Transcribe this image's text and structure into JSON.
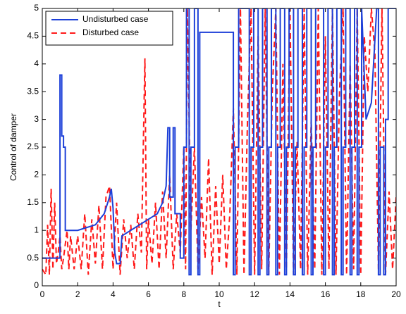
{
  "chart_data": {
    "type": "line",
    "xlabel": "t",
    "ylabel": "Control of damper",
    "xlim": [
      0,
      20
    ],
    "xticks": [
      0,
      2,
      4,
      6,
      8,
      10,
      12,
      14,
      16,
      18,
      20
    ],
    "ylim": [
      0,
      5
    ],
    "yticks": [
      0,
      0.5,
      1,
      1.5,
      2,
      2.5,
      3,
      3.5,
      4,
      4.5,
      5
    ],
    "grid": false,
    "legend": "upper left",
    "series": [
      {
        "name": "Undisturbed case",
        "color": "#1c3fd8",
        "dash": false,
        "x": [
          0,
          1.0,
          1.0,
          1.1,
          1.1,
          1.2,
          1.2,
          1.3,
          1.3,
          2.0,
          2.5,
          3.0,
          3.5,
          3.8,
          3.9,
          4.0,
          4.1,
          4.2,
          4.4,
          4.5,
          5.0,
          5.5,
          6.0,
          6.5,
          6.8,
          7.0,
          7.1,
          7.2,
          7.2,
          7.4,
          7.4,
          7.5,
          7.5,
          7.8,
          7.8,
          8.0,
          8.0,
          8.15,
          8.15,
          8.3,
          8.3,
          8.4,
          8.4,
          8.6,
          8.6,
          8.8,
          8.8,
          8.9,
          8.9,
          10.8,
          10.8,
          10.9,
          10.9,
          11.1,
          11.1,
          11.7,
          11.7,
          11.8,
          11.8,
          11.95,
          11.95,
          12.2,
          12.2,
          12.3,
          12.3,
          12.45,
          12.45,
          12.7,
          12.7,
          12.8,
          12.8,
          12.95,
          12.95,
          13.2,
          13.2,
          13.3,
          13.3,
          13.45,
          13.45,
          13.7,
          13.7,
          13.8,
          13.8,
          13.95,
          13.95,
          14.2,
          14.2,
          14.3,
          14.3,
          14.45,
          14.45,
          14.7,
          14.7,
          14.8,
          14.8,
          14.95,
          14.95,
          15.2,
          15.2,
          15.3,
          15.3,
          15.45,
          15.45,
          15.9,
          15.9,
          16.0,
          16.0,
          16.15,
          16.15,
          16.4,
          16.4,
          16.5,
          16.5,
          16.65,
          16.65,
          16.9,
          16.9,
          17.0,
          17.0,
          17.15,
          17.15,
          17.4,
          17.4,
          17.5,
          17.5,
          17.65,
          17.65,
          17.8,
          17.8,
          17.9,
          17.9,
          18.05,
          18.05,
          18.3,
          18.6,
          18.9,
          19.0,
          19.0,
          19.1,
          19.1,
          19.3,
          19.3,
          19.4,
          19.4,
          19.55,
          19.55,
          20
        ],
        "values": [
          0.5,
          0.5,
          3.8,
          3.8,
          2.7,
          2.7,
          2.5,
          2.5,
          1.0,
          1.0,
          1.05,
          1.1,
          1.3,
          1.6,
          1.75,
          1.4,
          0.6,
          0.4,
          0.4,
          0.9,
          1.0,
          1.1,
          1.2,
          1.3,
          1.5,
          1.8,
          2.85,
          2.85,
          1.6,
          1.6,
          2.85,
          2.85,
          1.3,
          1.3,
          0.5,
          0.5,
          2.5,
          2.5,
          5,
          5,
          0.2,
          0.2,
          2.5,
          2.5,
          5,
          5,
          0.2,
          0.2,
          4.57,
          4.57,
          0.2,
          0.2,
          2.5,
          2.5,
          5,
          5,
          0.2,
          0.2,
          2.5,
          2.5,
          5,
          5,
          0.2,
          0.2,
          2.5,
          2.5,
          5,
          5,
          0.2,
          0.2,
          2.5,
          2.5,
          5,
          5,
          0.2,
          0.2,
          2.5,
          2.5,
          5,
          5,
          0.2,
          0.2,
          2.5,
          2.5,
          5,
          5,
          0.2,
          0.2,
          2.5,
          2.5,
          5,
          5,
          0.2,
          0.2,
          2.5,
          2.5,
          5,
          5,
          0.2,
          0.2,
          2.5,
          2.5,
          5,
          5,
          0.2,
          0.2,
          2.5,
          2.5,
          5,
          5,
          0.2,
          0.2,
          2.5,
          2.5,
          5,
          5,
          0.2,
          0.2,
          2.5,
          2.5,
          5,
          5,
          0.2,
          0.2,
          2.5,
          2.5,
          5,
          5,
          0.2,
          0.2,
          2.5,
          2.5,
          5,
          3,
          3.3,
          5,
          5,
          0.2,
          0.2,
          2.5,
          2.5,
          0.2,
          0.2,
          3.0,
          3.0,
          5,
          5
        ]
      },
      {
        "name": "Disturbed case",
        "color": "#ff1a1a",
        "dash": true,
        "x": [
          0,
          0.2,
          0.3,
          0.4,
          0.5,
          0.6,
          0.7,
          0.8,
          0.9,
          1.0,
          1.1,
          1.2,
          1.4,
          1.5,
          1.6,
          1.8,
          2.0,
          2.2,
          2.4,
          2.6,
          2.8,
          3.0,
          3.2,
          3.4,
          3.6,
          3.8,
          4.0,
          4.2,
          4.4,
          4.6,
          4.8,
          5.0,
          5.2,
          5.4,
          5.6,
          5.8,
          5.9,
          6.0,
          6.2,
          6.4,
          6.6,
          6.8,
          7.0,
          7.2,
          7.4,
          7.6,
          7.8,
          8.0,
          8.1,
          8.2,
          8.4,
          8.6,
          8.8,
          9.0,
          9.2,
          9.4,
          9.6,
          9.8,
          10.0,
          10.2,
          10.4,
          10.6,
          10.8,
          11.0,
          11.2,
          11.4,
          11.6,
          11.8,
          12.0,
          12.2,
          12.4,
          12.6,
          12.8,
          13.0,
          13.2,
          13.4,
          13.6,
          13.8,
          14.0,
          14.2,
          14.4,
          14.6,
          14.8,
          15.0,
          15.2,
          15.4,
          15.6,
          15.8,
          16.0,
          16.2,
          16.4,
          16.6,
          16.8,
          17.0,
          17.2,
          17.4,
          17.6,
          17.8,
          18.0,
          18.2,
          18.4,
          18.6,
          18.8,
          19.0,
          19.2,
          19.4,
          19.6,
          19.8,
          20.0
        ],
        "values": [
          0.3,
          0.2,
          1.1,
          0.2,
          1.75,
          0.3,
          1.5,
          0.4,
          0.6,
          0.9,
          0.3,
          0.5,
          1.0,
          0.3,
          0.9,
          0.3,
          0.9,
          0.3,
          1.3,
          0.2,
          1.2,
          0.4,
          1.45,
          0.3,
          1.6,
          1.8,
          0.3,
          1.5,
          0.2,
          1.2,
          0.5,
          1.1,
          0.3,
          1.3,
          0.6,
          4.1,
          0.3,
          1.2,
          0.4,
          1.5,
          0.3,
          1.7,
          0.5,
          2.0,
          0.3,
          1.3,
          0.6,
          2.5,
          0.3,
          5,
          1.0,
          2.5,
          0.3,
          1.6,
          0.5,
          2.3,
          0.2,
          1.8,
          0.4,
          2.0,
          0.3,
          1.3,
          3.2,
          0.2,
          5,
          0.2,
          3.0,
          5,
          0.2,
          4.5,
          0.3,
          5,
          0.2,
          3.5,
          5,
          0.2,
          4.0,
          0.3,
          5,
          0.2,
          2.6,
          0.3,
          5,
          0.2,
          3.0,
          0.3,
          5,
          0.2,
          4.5,
          0.3,
          5,
          0.2,
          3.5,
          5,
          0.2,
          4.0,
          0.3,
          5,
          0.2,
          4.5,
          3.5,
          5,
          4.2,
          0.3,
          5,
          0.2,
          1.7,
          0.3,
          1.6
        ]
      }
    ]
  }
}
